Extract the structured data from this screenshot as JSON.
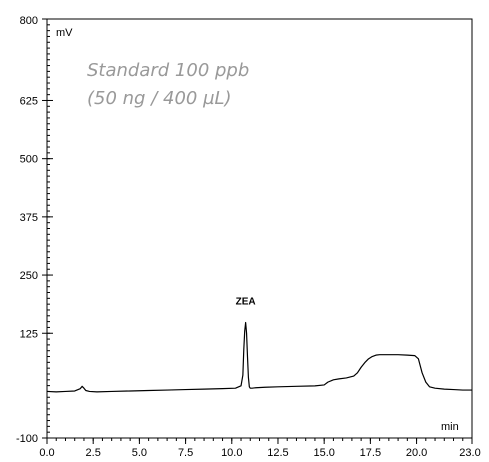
{
  "chart_data": {
    "type": "line",
    "title": "",
    "xlabel": "min",
    "ylabel": "mV",
    "xlim": [
      0.0,
      23.0
    ],
    "ylim": [
      -100,
      800
    ],
    "x_ticks": [
      0.0,
      2.5,
      5.0,
      7.5,
      10.0,
      12.5,
      15.0,
      17.5,
      20.0,
      23.0
    ],
    "x_tick_labels": [
      "0.0",
      "2.5",
      "5.0",
      "7.5",
      "10.0",
      "12.5",
      "15.0",
      "17.5",
      "20.0",
      "23.0"
    ],
    "y_ticks": [
      -100,
      125,
      250,
      375,
      500,
      625,
      800
    ],
    "y_tick_labels": [
      "-100",
      "125",
      "250",
      "375",
      "500",
      "625",
      "800"
    ],
    "grid": false,
    "annotation": {
      "lines": [
        "Standard 100 ppb",
        "(50 ng / 400 µL)"
      ],
      "color": "#999999"
    },
    "peaks": [
      {
        "name": "ZEA",
        "x": 10.75,
        "y": 148
      }
    ],
    "series": [
      {
        "color": "#000000",
        "x": [
          0.0,
          0.5,
          1.0,
          1.5,
          1.8,
          1.9,
          2.0,
          2.1,
          2.3,
          2.7,
          3.5,
          4.5,
          5.5,
          6.5,
          7.5,
          8.5,
          9.5,
          10.2,
          10.5,
          10.6,
          10.65,
          10.7,
          10.75,
          10.8,
          10.85,
          10.9,
          10.95,
          11.0,
          11.1,
          11.3,
          11.8,
          12.5,
          13.5,
          14.5,
          15.0,
          15.2,
          15.5,
          15.8,
          16.2,
          16.6,
          16.8,
          17.0,
          17.2,
          17.4,
          17.6,
          17.8,
          18.0,
          18.2,
          18.5,
          19.0,
          19.5,
          19.9,
          20.1,
          20.3,
          20.5,
          20.7,
          21.0,
          21.5,
          22.0,
          22.5,
          23.0
        ],
        "y": [
          0,
          -1,
          0,
          1,
          6,
          11,
          7,
          2,
          0,
          -1,
          0,
          1,
          2,
          3,
          4,
          5,
          6,
          7,
          12,
          35,
          90,
          130,
          148,
          125,
          75,
          30,
          10,
          7,
          7,
          8,
          9,
          10,
          11,
          12,
          14,
          20,
          25,
          27,
          29,
          33,
          40,
          52,
          62,
          70,
          75,
          78,
          79,
          79,
          79,
          79,
          78,
          77,
          70,
          40,
          20,
          10,
          7,
          5,
          4,
          3,
          3
        ]
      }
    ]
  }
}
